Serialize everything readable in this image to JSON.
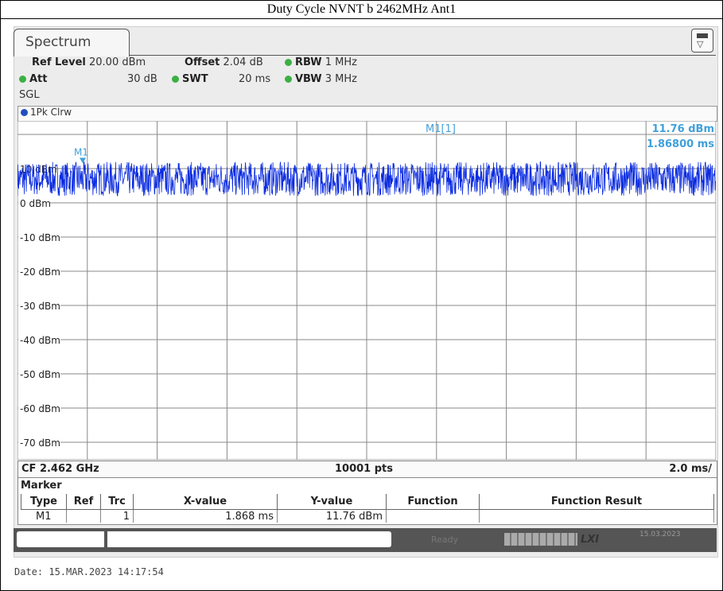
{
  "caption": "Duty Cycle NVNT b 2462MHz Ant1",
  "tab": {
    "label": "Spectrum"
  },
  "icons": [
    "display-config-icon"
  ],
  "settings": {
    "ref_level_label": "Ref Level",
    "ref_level_value": "20.00 dBm",
    "offset_label": "Offset",
    "offset_value": "2.04 dB",
    "rbw_label": "RBW",
    "rbw_value": "1 MHz",
    "att_label": "Att",
    "att_value": "30 dB",
    "swt_label": "SWT",
    "swt_value": "20 ms",
    "vbw_label": "VBW",
    "vbw_value": "3 MHz",
    "mode": "SGL"
  },
  "trace": {
    "label": "1Pk Clrw"
  },
  "chart_data": {
    "type": "line",
    "y_ticks": [
      "10 dBm",
      "0 dBm",
      "-10 dBm",
      "-20 dBm",
      "-30 dBm",
      "-40 dBm",
      "-50 dBm",
      "-60 dBm",
      "-70 dBm"
    ],
    "ylim": [
      -80,
      20
    ],
    "xlim_ms": [
      0,
      20
    ],
    "trace_level_dbm": 7,
    "trace_spread_db": 5,
    "trace_color": "#0a2be0",
    "marker_color": "#3fa0dc",
    "marker": {
      "name": "M1",
      "readout_label": "M1[1]",
      "level": "11.76 dBm",
      "time": "1.86800 ms",
      "x_ms": 1.868,
      "y_dbm": 11.76
    },
    "grid": true
  },
  "footer": {
    "center_freq": "CF 2.462 GHz",
    "points": "10001 pts",
    "span": "2.0 ms/"
  },
  "marker_table": {
    "title": "Marker",
    "headers": [
      "Type",
      "Ref",
      "Trc",
      "X-value",
      "Y-value",
      "Function",
      "Function Result"
    ],
    "rows": [
      {
        "type": "M1",
        "ref": "",
        "trc": "1",
        "x": "1.868 ms",
        "y": "11.76 dBm",
        "function": "",
        "result": ""
      }
    ]
  },
  "status": {
    "state": "Ready",
    "lxi": "LXI",
    "date": "15.03.2023"
  },
  "date_line": "Date: 15.MAR.2023  14:17:54"
}
